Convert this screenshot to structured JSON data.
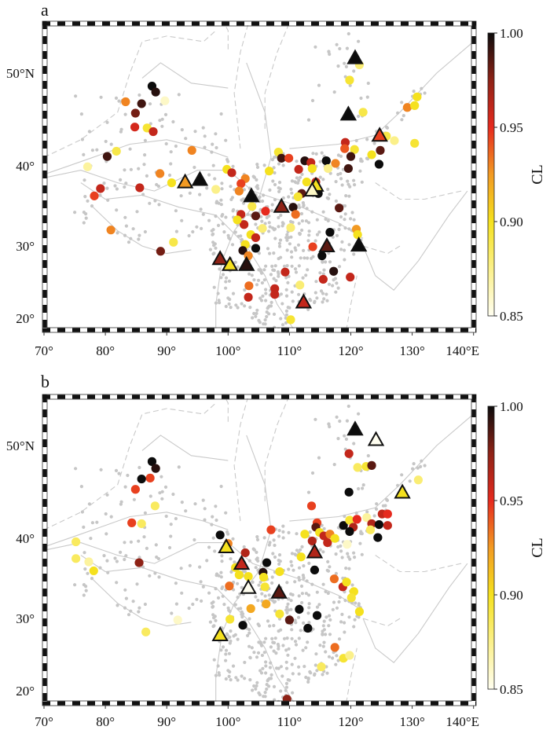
{
  "figure": {
    "panels": [
      {
        "label": "a",
        "circles": [
          [
            87.6,
            48.7,
            1.0
          ],
          [
            88.2,
            48.1,
            0.995
          ],
          [
            89.7,
            47.2,
            0.86
          ],
          [
            83.3,
            47.1,
            0.93
          ],
          [
            85.9,
            46.9,
            0.99
          ],
          [
            84.9,
            45.9,
            0.98
          ],
          [
            84.8,
            44.4,
            0.955
          ],
          [
            86.8,
            44.3,
            0.895
          ],
          [
            87.8,
            43.9,
            0.96
          ],
          [
            80.3,
            41.1,
            0.99
          ],
          [
            81.8,
            41.7,
            0.89
          ],
          [
            94.1,
            41.8,
            0.93
          ],
          [
            77.1,
            39.9,
            0.87
          ],
          [
            88.9,
            39.1,
            0.93
          ],
          [
            90.8,
            38.0,
            0.9
          ],
          [
            79.2,
            37.3,
            0.96
          ],
          [
            78.2,
            36.4,
            0.945
          ],
          [
            85.6,
            37.4,
            0.96
          ],
          [
            98.0,
            37.2,
            0.875
          ],
          [
            99.8,
            39.6,
            0.9
          ],
          [
            100.6,
            39.2,
            0.96
          ],
          [
            102.8,
            38.5,
            0.93
          ],
          [
            102.1,
            37.9,
            0.945
          ],
          [
            101.8,
            37.0,
            0.93
          ],
          [
            103.9,
            35.1,
            0.89
          ],
          [
            102.1,
            34.1,
            0.96
          ],
          [
            104.5,
            33.9,
            0.985
          ],
          [
            106.1,
            34.5,
            0.95
          ],
          [
            102.6,
            32.8,
            0.96
          ],
          [
            101.5,
            33.4,
            0.9
          ],
          [
            105.6,
            32.3,
            0.88
          ],
          [
            103.7,
            31.5,
            0.9
          ],
          [
            104.5,
            31.1,
            0.96
          ],
          [
            102.8,
            30.2,
            0.9
          ],
          [
            104.5,
            29.7,
            1.0
          ],
          [
            102.4,
            29.4,
            0.995
          ],
          [
            103.3,
            28.7,
            0.93
          ],
          [
            103.4,
            24.6,
            0.935
          ],
          [
            103.3,
            23.0,
            0.96
          ],
          [
            106.7,
            39.4,
            0.9
          ],
          [
            108.2,
            41.6,
            0.895
          ],
          [
            108.7,
            40.9,
            0.99
          ],
          [
            109.9,
            40.9,
            0.945
          ],
          [
            111.5,
            39.6,
            0.96
          ],
          [
            112.5,
            40.6,
            0.995
          ],
          [
            113.5,
            40.4,
            0.96
          ],
          [
            113.7,
            39.7,
            0.9
          ],
          [
            116.0,
            40.6,
            1.0
          ],
          [
            116.3,
            39.7,
            0.875
          ],
          [
            117.5,
            40.3,
            0.93
          ],
          [
            119.1,
            42.7,
            0.96
          ],
          [
            119.0,
            42.0,
            0.94
          ],
          [
            120.6,
            41.9,
            0.895
          ],
          [
            120.0,
            41.1,
            0.99
          ],
          [
            119.6,
            39.7,
            0.99
          ],
          [
            123.4,
            41.3,
            0.9
          ],
          [
            124.8,
            41.8,
            0.985
          ],
          [
            124.6,
            40.2,
            1.0
          ],
          [
            119.8,
            49.3,
            0.895
          ],
          [
            122.0,
            46.0,
            0.89
          ],
          [
            121.4,
            50.8,
            0.88
          ],
          [
            129.2,
            46.5,
            0.93
          ],
          [
            130.4,
            46.7,
            0.9
          ],
          [
            130.8,
            47.6,
            0.9
          ],
          [
            125.8,
            43.4,
            0.89
          ],
          [
            127.1,
            42.9,
            0.875
          ],
          [
            130.4,
            42.6,
            0.895
          ],
          [
            112.8,
            38.1,
            0.9
          ],
          [
            114.3,
            38.1,
            0.96
          ],
          [
            112.0,
            36.7,
            0.985
          ],
          [
            111.4,
            36.3,
            0.895
          ],
          [
            114.7,
            36.7,
            1.0
          ],
          [
            118.1,
            34.9,
            0.985
          ],
          [
            110.6,
            35.0,
            0.995
          ],
          [
            111.0,
            34.1,
            0.935
          ],
          [
            110.2,
            32.4,
            0.88
          ],
          [
            116.6,
            31.8,
            1.0
          ],
          [
            120.9,
            32.2,
            0.925
          ],
          [
            121.1,
            31.5,
            0.9
          ],
          [
            113.8,
            29.9,
            0.945
          ],
          [
            115.3,
            28.7,
            1.0
          ],
          [
            117.2,
            26.6,
            0.995
          ],
          [
            119.9,
            25.8,
            0.96
          ],
          [
            115.5,
            25.5,
            0.96
          ],
          [
            109.3,
            26.5,
            0.96
          ],
          [
            107.6,
            24.2,
            0.96
          ],
          [
            107.6,
            23.4,
            0.96
          ],
          [
            111.7,
            24.7,
            0.88
          ],
          [
            110.2,
            19.8,
            0.895
          ],
          [
            80.9,
            32.1,
            0.93
          ],
          [
            91.1,
            30.5,
            0.89
          ],
          [
            89.0,
            29.3,
            0.98
          ]
        ],
        "triangles": [
          [
            120.7,
            51.4,
            1.0
          ],
          [
            119.6,
            45.7,
            1.0
          ],
          [
            124.7,
            43.4,
            0.945
          ],
          [
            93.0,
            38.0,
            0.925
          ],
          [
            95.4,
            38.3,
            1.0
          ],
          [
            103.8,
            36.3,
            1.0
          ],
          [
            108.7,
            35.0,
            0.975
          ],
          [
            114.3,
            37.6,
            0.9
          ],
          [
            113.7,
            37.0,
            0.86
          ],
          [
            116.1,
            29.9,
            0.985
          ],
          [
            121.3,
            30.0,
            1.0
          ],
          [
            98.7,
            28.2,
            0.975
          ],
          [
            100.3,
            27.4,
            0.9
          ],
          [
            103.0,
            27.4,
            0.995
          ],
          [
            112.3,
            22.2,
            0.96
          ]
        ]
      },
      {
        "label": "b",
        "circles": [
          [
            87.6,
            48.4,
            1.0
          ],
          [
            88.2,
            47.7,
            0.995
          ],
          [
            87.3,
            46.7,
            0.945
          ],
          [
            85.9,
            46.6,
            1.0
          ],
          [
            84.9,
            45.5,
            0.945
          ],
          [
            88.1,
            43.7,
            0.885
          ],
          [
            84.3,
            41.8,
            0.945
          ],
          [
            85.9,
            41.7,
            0.885
          ],
          [
            75.2,
            39.6,
            0.885
          ],
          [
            75.2,
            37.6,
            0.885
          ],
          [
            77.3,
            37.2,
            0.87
          ],
          [
            78.1,
            36.1,
            0.9
          ],
          [
            85.5,
            37.1,
            0.975
          ],
          [
            86.6,
            28.2,
            0.885
          ],
          [
            91.8,
            29.8,
            0.86
          ],
          [
            98.7,
            40.4,
            1.0
          ],
          [
            100.0,
            39.4,
            0.93
          ],
          [
            102.8,
            38.3,
            0.965
          ],
          [
            101.2,
            36.5,
            0.9
          ],
          [
            101.8,
            35.6,
            0.9
          ],
          [
            103.3,
            35.4,
            0.9
          ],
          [
            100.2,
            34.2,
            0.935
          ],
          [
            106.3,
            37.1,
            1.0
          ],
          [
            105.7,
            35.9,
            0.995
          ],
          [
            105.8,
            35.3,
            0.9
          ],
          [
            108.4,
            36.0,
            0.9
          ],
          [
            106.0,
            34.1,
            0.895
          ],
          [
            106.2,
            31.9,
            0.92
          ],
          [
            103.7,
            31.3,
            0.92
          ],
          [
            100.3,
            29.9,
            0.895
          ],
          [
            102.4,
            29.1,
            1.0
          ],
          [
            108.4,
            30.6,
            0.895
          ],
          [
            110.0,
            29.8,
            0.985
          ],
          [
            111.6,
            31.2,
            1.0
          ],
          [
            113.0,
            28.7,
            1.0
          ],
          [
            114.5,
            30.4,
            1.0
          ],
          [
            107.0,
            41.0,
            0.945
          ],
          [
            113.6,
            43.7,
            0.945
          ],
          [
            114.5,
            41.8,
            0.945
          ],
          [
            114.3,
            41.3,
            0.985
          ],
          [
            112.5,
            40.5,
            0.9
          ],
          [
            114.9,
            40.7,
            0.9
          ],
          [
            113.7,
            39.7,
            0.965
          ],
          [
            115.6,
            40.3,
            0.96
          ],
          [
            116.2,
            39.5,
            0.96
          ],
          [
            116.6,
            40.5,
            0.93
          ],
          [
            117.4,
            40.0,
            0.9
          ],
          [
            119.4,
            39.3,
            0.86
          ],
          [
            111.9,
            37.8,
            0.9
          ],
          [
            114.1,
            36.2,
            1.0
          ],
          [
            118.8,
            41.5,
            1.0
          ],
          [
            119.8,
            42.1,
            0.895
          ],
          [
            120.4,
            41.3,
            0.965
          ],
          [
            121.0,
            42.2,
            0.95
          ],
          [
            119.8,
            40.8,
            1.0
          ],
          [
            122.6,
            42.4,
            0.87
          ],
          [
            123.4,
            41.7,
            0.965
          ],
          [
            123.2,
            41.0,
            0.885
          ],
          [
            124.6,
            41.6,
            1.0
          ],
          [
            124.4,
            40.1,
            1.0
          ],
          [
            125.1,
            42.8,
            0.96
          ],
          [
            126.0,
            42.8,
            0.95
          ],
          [
            126.0,
            41.5,
            0.96
          ],
          [
            119.7,
            49.2,
            0.96
          ],
          [
            119.7,
            45.2,
            1.0
          ],
          [
            121.1,
            47.8,
            0.885
          ],
          [
            122.5,
            47.9,
            0.895
          ],
          [
            123.4,
            48.0,
            0.985
          ],
          [
            131.0,
            46.5,
            0.88
          ],
          [
            117.3,
            35.1,
            0.935
          ],
          [
            118.7,
            34.1,
            0.96
          ],
          [
            119.3,
            34.7,
            0.9
          ],
          [
            120.5,
            33.5,
            0.9
          ],
          [
            120.1,
            32.7,
            0.895
          ],
          [
            121.4,
            30.9,
            0.9
          ],
          [
            117.4,
            26.1,
            0.935
          ],
          [
            118.8,
            24.6,
            0.895
          ],
          [
            119.8,
            25.0,
            0.875
          ],
          [
            115.2,
            23.4,
            0.885
          ],
          [
            109.6,
            18.8,
            0.975
          ]
        ],
        "triangles": [
          [
            120.7,
            51.5,
            1.0
          ],
          [
            124.1,
            50.5,
            0.85
          ],
          [
            128.4,
            45.1,
            0.9
          ],
          [
            99.7,
            38.9,
            0.9
          ],
          [
            102.2,
            36.9,
            0.96
          ],
          [
            103.3,
            33.9,
            0.85
          ],
          [
            108.3,
            33.3,
            0.985
          ],
          [
            114.1,
            38.3,
            0.965
          ],
          [
            98.7,
            27.7,
            0.9
          ]
        ]
      }
    ],
    "lon_ticks": [
      {
        "value": 70,
        "label": "70°"
      },
      {
        "value": 80,
        "label": "80°"
      },
      {
        "value": 90,
        "label": "90°"
      },
      {
        "value": 100,
        "label": "100°"
      },
      {
        "value": 110,
        "label": "110°"
      },
      {
        "value": 120,
        "label": "120°"
      },
      {
        "value": 130,
        "label": "130°"
      },
      {
        "value": 140,
        "label": "140°E"
      }
    ],
    "lat_ticks": [
      {
        "value": 50,
        "label": "50°N"
      },
      {
        "value": 40,
        "label": "40°"
      },
      {
        "value": 30,
        "label": "30°"
      },
      {
        "value": 20,
        "label": "20°"
      }
    ],
    "colorbar": {
      "title": "CL",
      "range": [
        0.85,
        1.0
      ],
      "ticks": [
        {
          "value": 1.0,
          "label": "1.00"
        },
        {
          "value": 0.95,
          "label": "0.95"
        },
        {
          "value": 0.9,
          "label": "0.90"
        },
        {
          "value": 0.85,
          "label": "0.85"
        }
      ],
      "stops": [
        {
          "value": 0.85,
          "color": "#fffef0"
        },
        {
          "value": 0.875,
          "color": "#fbf08a"
        },
        {
          "value": 0.9,
          "color": "#f5e11e"
        },
        {
          "value": 0.925,
          "color": "#f29a22"
        },
        {
          "value": 0.95,
          "color": "#e62a1e"
        },
        {
          "value": 0.975,
          "color": "#8e2216"
        },
        {
          "value": 1.0,
          "color": "#0c0c0c"
        }
      ]
    },
    "colors": {
      "station": "#c6c6c6",
      "boundary": "#c9c9c9"
    }
  }
}
